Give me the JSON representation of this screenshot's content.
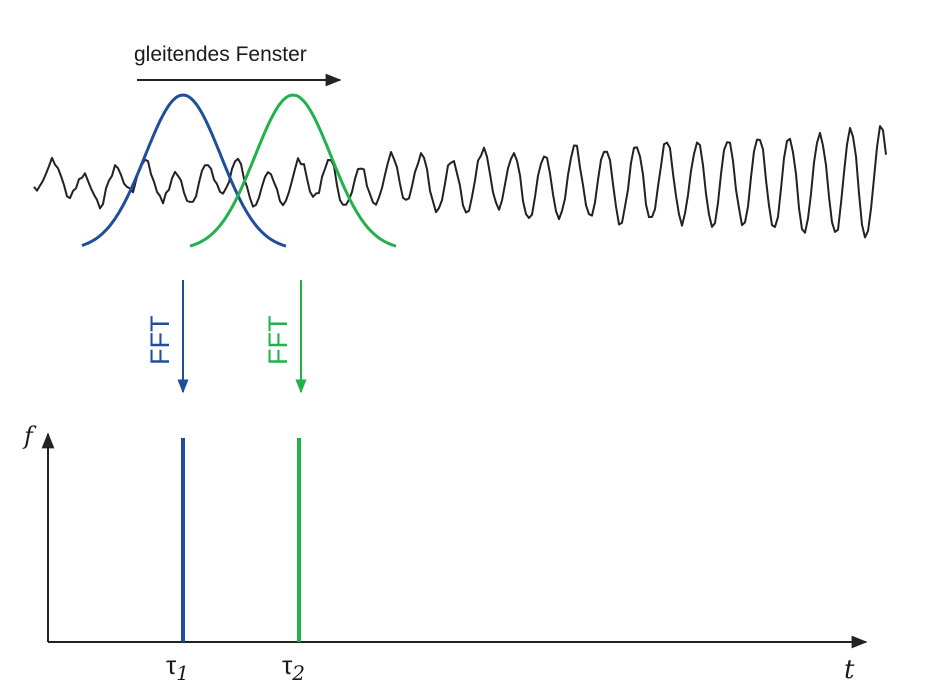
{
  "window_label": "gleitendes Fenster",
  "fft_labels": [
    "FFT",
    "FFT"
  ],
  "time_axis_label": "t",
  "freq_axis_label": "f",
  "tau_labels": [
    {
      "sym": "τ",
      "sub": "1"
    },
    {
      "sym": "τ",
      "sub": "2"
    }
  ],
  "colors": {
    "window_1": "#1f4e9c",
    "window_2": "#22b14c",
    "signal": "#222222",
    "axis": "#222222"
  }
}
